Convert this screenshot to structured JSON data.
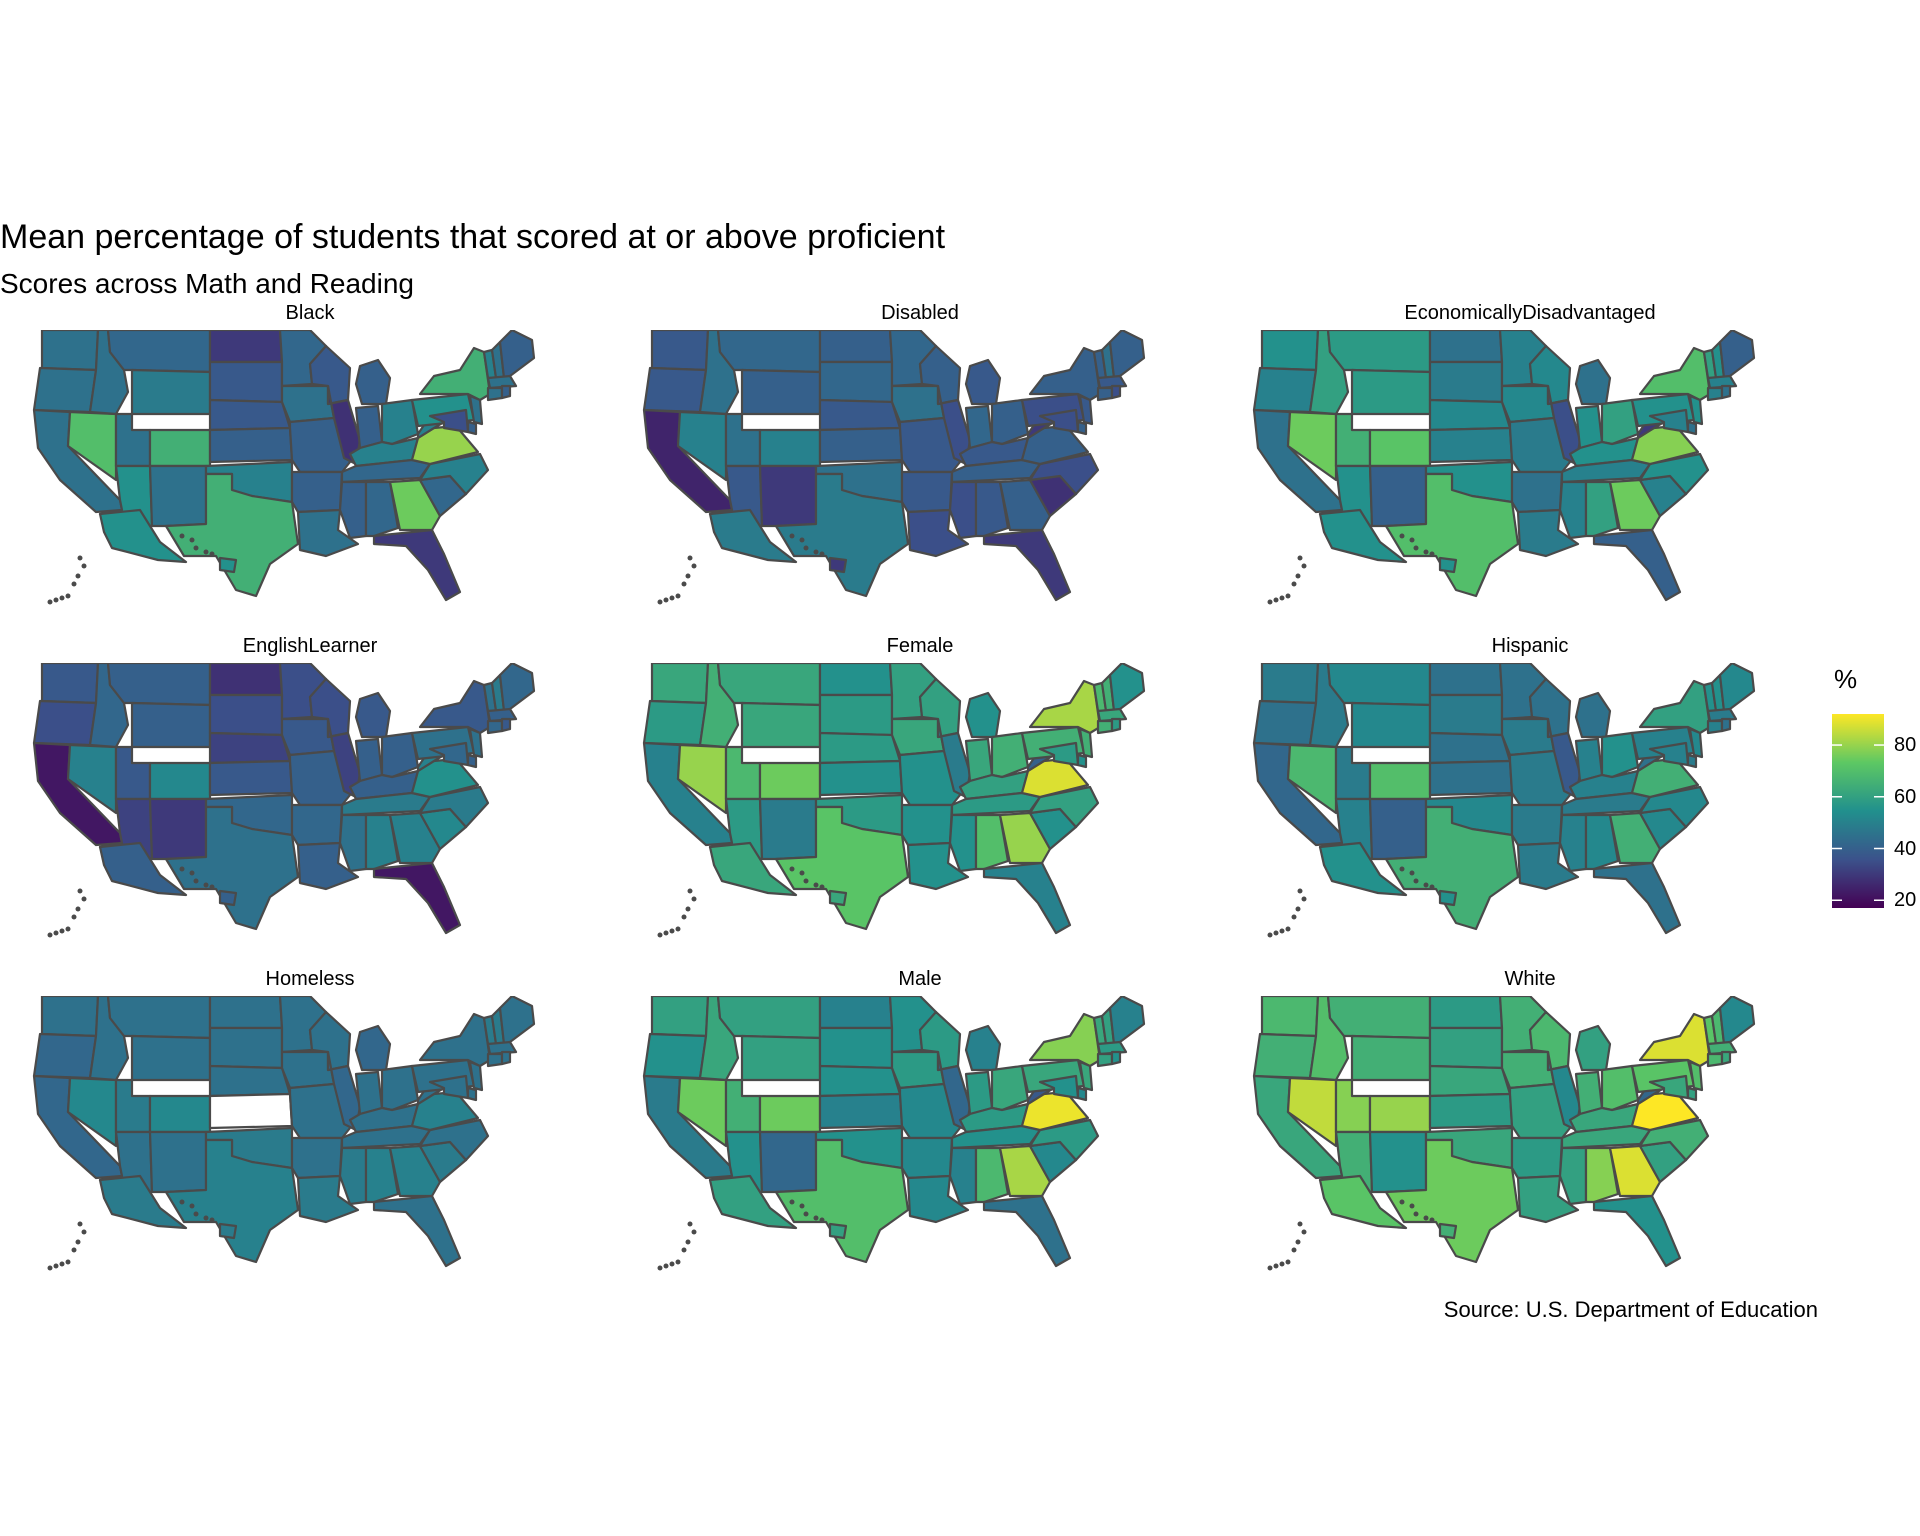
{
  "title": "Mean percentage of students that scored at or above proficient",
  "subtitle": "Scores across Math and Reading",
  "caption": "Source: U.S. Department of Education",
  "legend": {
    "title": "%",
    "ticks": [
      "80",
      "60",
      "40",
      "20"
    ],
    "tick_values": [
      80,
      60,
      40,
      20
    ],
    "range": [
      17,
      92
    ],
    "palette": [
      "#440154",
      "#3b528b",
      "#21908d",
      "#5dc863",
      "#fde725"
    ]
  },
  "colors": {
    "state_border": "#4a4a4a",
    "missing_state": "#ffffff"
  },
  "facets": [
    {
      "label": "Black",
      "values": {
        "WA": 45,
        "OR": 45,
        "CA": 45,
        "NV": 70,
        "ID": 45,
        "MT": 42,
        "WY": 48,
        "UT": 45,
        "CO": 65,
        "AZ": 55,
        "NM": 45,
        "ND": 30,
        "SD": 38,
        "NE": 38,
        "KS": 40,
        "OK": 50,
        "TX": 65,
        "MN": 42,
        "IA": 45,
        "MO": 40,
        "AR": 40,
        "LA": 45,
        "WI": 38,
        "IL": 28,
        "MI": 40,
        "IN": 40,
        "OH": 50,
        "KY": 50,
        "TN": 42,
        "MS": 40,
        "AL": 42,
        "GA": 75,
        "FL": 30,
        "SC": 42,
        "NC": 50,
        "VA": 80,
        "WV": 50,
        "PA": 55,
        "NY": 65,
        "VT": 50,
        "NH": 45,
        "ME": 40,
        "MA": 45,
        "CT": 45,
        "RI": 40,
        "NJ": 45,
        "DE": 40,
        "MD": 35,
        "AK": 55,
        "HI": 55
      }
    },
    {
      "label": "Disabled",
      "values": {
        "WA": 38,
        "OR": 38,
        "CA": 25,
        "NV": 50,
        "ID": 45,
        "MT": 42,
        "WY": 40,
        "UT": 45,
        "CO": 50,
        "AZ": 38,
        "NM": 30,
        "ND": 40,
        "SD": 42,
        "NE": 38,
        "KS": 40,
        "OK": 45,
        "TX": 48,
        "MN": 42,
        "IA": 45,
        "MO": 38,
        "AR": 38,
        "LA": 35,
        "WI": 40,
        "IL": 35,
        "MI": 38,
        "IN": 42,
        "OH": 40,
        "KY": 38,
        "TN": 40,
        "MS": 35,
        "AL": 38,
        "GA": 40,
        "FL": 30,
        "SC": 28,
        "NC": 35,
        "VA": 40,
        "WV": 30,
        "PA": 35,
        "NY": 40,
        "VT": 40,
        "NH": 45,
        "ME": 40,
        "MA": 38,
        "CT": 40,
        "RI": 35,
        "NJ": 38,
        "DE": 40,
        "MD": 35,
        "AK": 48,
        "HI": 30
      }
    },
    {
      "label": "EconomicallyDisadvantaged",
      "values": {
        "WA": 55,
        "OR": 50,
        "CA": 45,
        "NV": 75,
        "ID": 60,
        "MT": 58,
        "WY": 58,
        "UT": 65,
        "CO": 72,
        "AZ": 55,
        "NM": 40,
        "ND": 45,
        "SD": 48,
        "NE": 52,
        "KS": 50,
        "OK": 55,
        "TX": 70,
        "MN": 50,
        "IA": 52,
        "MO": 48,
        "AR": 45,
        "LA": 48,
        "WI": 52,
        "IL": 35,
        "MI": 45,
        "IN": 55,
        "OH": 60,
        "KY": 55,
        "TN": 50,
        "MS": 50,
        "AL": 60,
        "GA": 75,
        "FL": 40,
        "SC": 50,
        "NC": 55,
        "VA": 78,
        "WV": 30,
        "PA": 55,
        "NY": 70,
        "VT": 60,
        "NH": 55,
        "ME": 40,
        "MA": 50,
        "CT": 50,
        "RI": 45,
        "NJ": 55,
        "DE": 45,
        "MD": 50,
        "AK": 55,
        "HI": 55
      }
    },
    {
      "label": "EnglishLearner",
      "values": {
        "WA": 38,
        "OR": 35,
        "CA": 22,
        "NV": 50,
        "ID": 42,
        "MT": 40,
        "WY": 40,
        "UT": 38,
        "CO": 52,
        "AZ": 32,
        "NM": 30,
        "ND": 28,
        "SD": 35,
        "NE": 32,
        "KS": 38,
        "OK": 42,
        "TX": 45,
        "MN": 35,
        "IA": 38,
        "MO": 40,
        "AR": 42,
        "LA": 40,
        "WI": 35,
        "IL": 32,
        "MI": 38,
        "IN": 40,
        "OH": 40,
        "KY": 40,
        "TN": 48,
        "MS": 45,
        "AL": 50,
        "GA": 50,
        "FL": 22,
        "SC": 52,
        "NC": 48,
        "VA": 55,
        "WV": 50,
        "PA": 45,
        "NY": 38,
        "VT": 45,
        "NH": 48,
        "ME": 42,
        "MA": 40,
        "CT": 42,
        "RI": 38,
        "NJ": 45,
        "DE": 40,
        "MD": 42,
        "AK": 40,
        "HI": 40
      }
    },
    {
      "label": "Female",
      "values": {
        "WA": 62,
        "OR": 58,
        "CA": 50,
        "NV": 80,
        "ID": 65,
        "MT": 62,
        "WY": 62,
        "UT": 68,
        "CO": 75,
        "AZ": 58,
        "NM": 48,
        "ND": 55,
        "SD": 58,
        "NE": 58,
        "KS": 55,
        "OK": 58,
        "TX": 72,
        "MN": 60,
        "IA": 62,
        "MO": 55,
        "AR": 55,
        "LA": 55,
        "WI": 60,
        "IL": 48,
        "MI": 55,
        "IN": 62,
        "OH": 65,
        "KY": 60,
        "TN": 58,
        "MS": 55,
        "AL": 70,
        "GA": 80,
        "FL": 50,
        "SC": 55,
        "NC": 60,
        "VA": 88,
        "WV": 40,
        "PA": 65,
        "NY": 82,
        "VT": 68,
        "NH": 65,
        "ME": 55,
        "MA": 62,
        "CT": 65,
        "RI": 58,
        "NJ": 65,
        "DE": 55,
        "MD": 58,
        "AK": 62,
        "HI": 62
      }
    },
    {
      "label": "Hispanic",
      "values": {
        "WA": 48,
        "OR": 45,
        "CA": 42,
        "NV": 68,
        "ID": 48,
        "MT": 52,
        "WY": 52,
        "UT": 48,
        "CO": 70,
        "AZ": 50,
        "NM": 40,
        "ND": 45,
        "SD": 48,
        "NE": 45,
        "KS": 45,
        "OK": 52,
        "TX": 65,
        "MN": 45,
        "IA": 48,
        "MO": 48,
        "AR": 48,
        "LA": 48,
        "WI": 45,
        "IL": 38,
        "MI": 45,
        "IN": 50,
        "OH": 55,
        "KY": 50,
        "TN": 48,
        "MS": 50,
        "AL": 52,
        "GA": 65,
        "FL": 45,
        "SC": 52,
        "NC": 52,
        "VA": 65,
        "WV": 45,
        "PA": 50,
        "NY": 60,
        "VT": 55,
        "NH": 55,
        "ME": 52,
        "MA": 48,
        "CT": 50,
        "RI": 45,
        "NJ": 52,
        "DE": 48,
        "MD": 50,
        "AK": 55,
        "HI": 55
      }
    },
    {
      "label": "Homeless",
      "values": {
        "WA": 45,
        "OR": 42,
        "CA": 42,
        "NV": 52,
        "ID": 45,
        "MT": 45,
        "WY": 45,
        "UT": 48,
        "CO": 52,
        "AZ": 45,
        "NM": 45,
        "ND": 45,
        "SD": 45,
        "NE": 45,
        "KS": null,
        "OK": 48,
        "TX": 50,
        "MN": 45,
        "IA": 45,
        "MO": 45,
        "AR": 45,
        "LA": 48,
        "WI": 45,
        "IL": 42,
        "MI": 42,
        "IN": 45,
        "OH": 45,
        "KY": 45,
        "TN": 45,
        "MS": 48,
        "AL": 50,
        "GA": 50,
        "FL": 45,
        "SC": 48,
        "NC": 45,
        "VA": 50,
        "WV": 45,
        "PA": 45,
        "NY": 45,
        "VT": 48,
        "NH": 48,
        "ME": 45,
        "MA": 45,
        "CT": 45,
        "RI": 45,
        "NJ": 45,
        "DE": 45,
        "MD": 45,
        "AK": 48,
        "HI": 48
      }
    },
    {
      "label": "Male",
      "values": {
        "WA": 60,
        "OR": 55,
        "CA": 48,
        "NV": 75,
        "ID": 62,
        "MT": 60,
        "WY": 60,
        "UT": 65,
        "CO": 75,
        "AZ": 55,
        "NM": 42,
        "ND": 50,
        "SD": 55,
        "NE": 55,
        "KS": 50,
        "OK": 55,
        "TX": 70,
        "MN": 55,
        "IA": 58,
        "MO": 52,
        "AR": 52,
        "LA": 52,
        "WI": 58,
        "IL": 42,
        "MI": 50,
        "IN": 58,
        "OH": 62,
        "KY": 58,
        "TN": 55,
        "MS": 50,
        "AL": 68,
        "GA": 82,
        "FL": 45,
        "SC": 52,
        "NC": 58,
        "VA": 90,
        "WV": 38,
        "PA": 62,
        "NY": 78,
        "VT": 62,
        "NH": 60,
        "ME": 50,
        "MA": 58,
        "CT": 60,
        "RI": 55,
        "NJ": 62,
        "DE": 52,
        "MD": 55,
        "AK": 60,
        "HI": 60
      }
    },
    {
      "label": "White",
      "values": {
        "WA": 68,
        "OR": 65,
        "CA": 62,
        "NV": 85,
        "ID": 70,
        "MT": 65,
        "WY": 65,
        "UT": 78,
        "CO": 80,
        "AZ": 65,
        "NM": 55,
        "ND": 58,
        "SD": 60,
        "NE": 62,
        "KS": 58,
        "OK": 62,
        "TX": 75,
        "MN": 65,
        "IA": 65,
        "MO": 60,
        "AR": 58,
        "LA": 60,
        "WI": 68,
        "IL": 52,
        "MI": 60,
        "IN": 65,
        "OH": 70,
        "KY": 62,
        "TN": 62,
        "MS": 60,
        "AL": 78,
        "GA": 88,
        "FL": 55,
        "SC": 60,
        "NC": 65,
        "VA": 92,
        "WV": 42,
        "PA": 72,
        "NY": 88,
        "VT": 72,
        "NH": 68,
        "ME": 52,
        "MA": 65,
        "CT": 68,
        "RI": 62,
        "NJ": 70,
        "DE": 60,
        "MD": 62,
        "AK": 72,
        "HI": 65
      }
    }
  ]
}
